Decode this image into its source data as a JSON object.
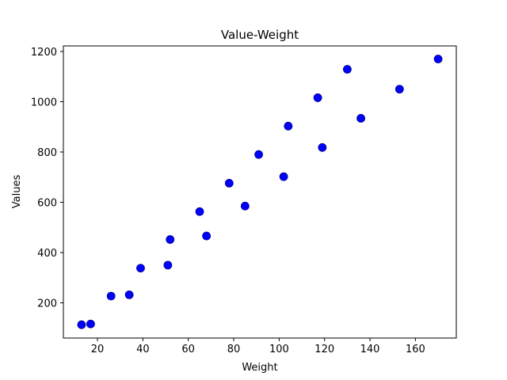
{
  "chart_data": {
    "type": "scatter",
    "title": "Value-Weight",
    "xlabel": "Weight",
    "ylabel": "Values",
    "xlim": [
      5,
      178
    ],
    "ylim": [
      60,
      1222
    ],
    "xticks": [
      20,
      40,
      60,
      80,
      100,
      120,
      140,
      160
    ],
    "yticks": [
      200,
      400,
      600,
      800,
      1000,
      1200
    ],
    "grid": false,
    "legend": "none",
    "marker_color": "#0000ff",
    "points": [
      {
        "x": 13,
        "y": 113
      },
      {
        "x": 17,
        "y": 116
      },
      {
        "x": 26,
        "y": 227
      },
      {
        "x": 34,
        "y": 232
      },
      {
        "x": 39,
        "y": 338
      },
      {
        "x": 51,
        "y": 350
      },
      {
        "x": 52,
        "y": 452
      },
      {
        "x": 65,
        "y": 563
      },
      {
        "x": 68,
        "y": 466
      },
      {
        "x": 78,
        "y": 676
      },
      {
        "x": 85,
        "y": 585
      },
      {
        "x": 91,
        "y": 790
      },
      {
        "x": 102,
        "y": 702
      },
      {
        "x": 104,
        "y": 903
      },
      {
        "x": 117,
        "y": 1016
      },
      {
        "x": 119,
        "y": 818
      },
      {
        "x": 130,
        "y": 1129
      },
      {
        "x": 136,
        "y": 934
      },
      {
        "x": 153,
        "y": 1050
      },
      {
        "x": 170,
        "y": 1170
      }
    ]
  }
}
